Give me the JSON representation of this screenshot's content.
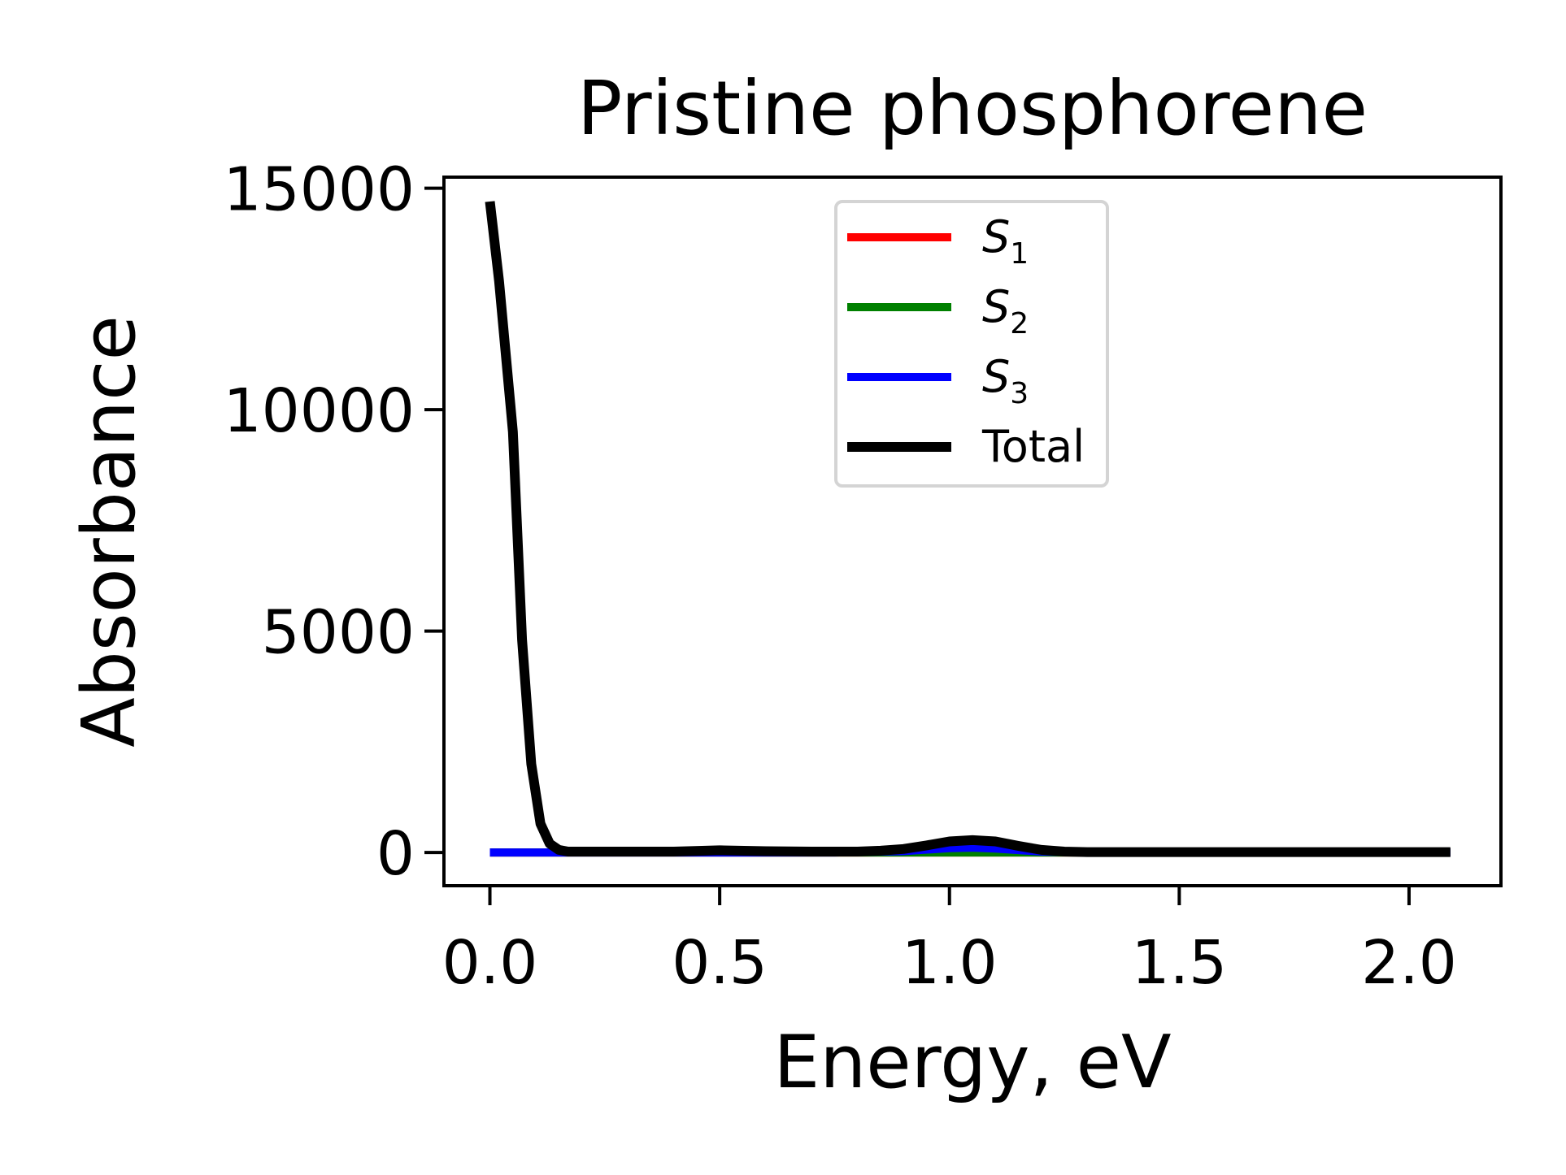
{
  "chart_data": {
    "type": "line",
    "title": "Pristine phosphorene",
    "xlabel": "Energy, eV",
    "ylabel": "Absorbance",
    "xlim": [
      -0.1,
      2.2
    ],
    "ylim": [
      -750,
      15250
    ],
    "xticks": [
      0.0,
      0.5,
      1.0,
      1.5,
      2.0
    ],
    "xtick_labels": [
      "0.0",
      "0.5",
      "1.0",
      "1.5",
      "2.0"
    ],
    "yticks": [
      0,
      5000,
      10000,
      15000
    ],
    "ytick_labels": [
      "0",
      "5000",
      "10000",
      "15000"
    ],
    "grid": false,
    "legend": {
      "position": "upper-center",
      "entries": [
        {
          "base": "S",
          "sub": "1",
          "color": "#ff0000",
          "series": "S1"
        },
        {
          "base": "S",
          "sub": "2",
          "color": "#008000",
          "series": "S2"
        },
        {
          "base": "S",
          "sub": "3",
          "color": "#0000ff",
          "series": "S3"
        },
        {
          "base": "Total",
          "sub": "",
          "color": "#000000",
          "series": "Total"
        }
      ]
    },
    "series": [
      {
        "name": "S1",
        "color": "#ff0000",
        "x": [
          0.0,
          0.25,
          0.5,
          0.75,
          1.0,
          1.25,
          1.5,
          1.75,
          2.0,
          2.09
        ],
        "y": [
          0,
          0,
          0,
          0,
          0,
          0,
          0,
          0,
          0,
          0
        ]
      },
      {
        "name": "S2",
        "color": "#008000",
        "x": [
          0.0,
          0.25,
          0.5,
          0.75,
          1.0,
          1.25,
          1.5,
          1.75,
          2.0,
          2.09
        ],
        "y": [
          0,
          0,
          0,
          0,
          0,
          0,
          0,
          0,
          0,
          0
        ]
      },
      {
        "name": "S3",
        "color": "#0000ff",
        "x": [
          0.0,
          0.25,
          0.5,
          0.75,
          0.9,
          1.0,
          1.05,
          1.1,
          1.2,
          1.3,
          1.5,
          1.75,
          2.0,
          2.09
        ],
        "y": [
          0,
          0,
          0,
          0,
          30,
          100,
          110,
          90,
          20,
          0,
          0,
          0,
          0,
          0
        ]
      },
      {
        "name": "Total",
        "color": "#000000",
        "x": [
          0.0,
          0.02,
          0.05,
          0.07,
          0.09,
          0.11,
          0.13,
          0.15,
          0.17,
          0.2,
          0.3,
          0.4,
          0.5,
          0.6,
          0.7,
          0.8,
          0.85,
          0.9,
          0.95,
          1.0,
          1.05,
          1.1,
          1.15,
          1.2,
          1.25,
          1.3,
          1.5,
          1.75,
          2.0,
          2.09
        ],
        "y": [
          14700,
          12900,
          9500,
          4800,
          2000,
          650,
          200,
          60,
          20,
          20,
          20,
          20,
          50,
          30,
          20,
          20,
          40,
          80,
          160,
          250,
          280,
          250,
          150,
          60,
          20,
          10,
          10,
          10,
          10,
          10
        ]
      }
    ]
  }
}
